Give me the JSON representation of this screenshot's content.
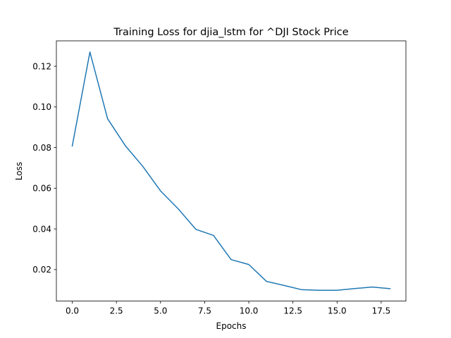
{
  "chart_data": {
    "type": "line",
    "title": "Training Loss for djia_lstm for ^DJI Stock Price",
    "xlabel": "Epochs",
    "ylabel": "Loss",
    "xlim": [
      -0.9,
      18.9
    ],
    "ylim": [
      0.0045,
      0.1325
    ],
    "xticks": [
      0.0,
      2.5,
      5.0,
      7.5,
      10.0,
      12.5,
      15.0,
      17.5
    ],
    "xtick_labels": [
      "0.0",
      "2.5",
      "5.0",
      "7.5",
      "10.0",
      "12.5",
      "15.0",
      "17.5"
    ],
    "yticks": [
      0.02,
      0.04,
      0.06,
      0.08,
      0.1,
      0.12
    ],
    "ytick_labels": [
      "0.02",
      "0.04",
      "0.06",
      "0.08",
      "0.10",
      "0.12"
    ],
    "grid": false,
    "series": [
      {
        "color": "#1f77b4",
        "x": [
          0,
          1,
          2,
          3,
          4,
          5,
          6,
          7,
          8,
          9,
          10,
          11,
          12,
          13,
          14,
          15,
          16,
          17,
          18
        ],
        "y": [
          0.0808,
          0.127,
          0.0942,
          0.081,
          0.0707,
          0.0587,
          0.0499,
          0.0398,
          0.0368,
          0.0249,
          0.0225,
          0.0142,
          0.0122,
          0.0101,
          0.0098,
          0.0098,
          0.0107,
          0.0114,
          0.0106
        ]
      }
    ]
  }
}
